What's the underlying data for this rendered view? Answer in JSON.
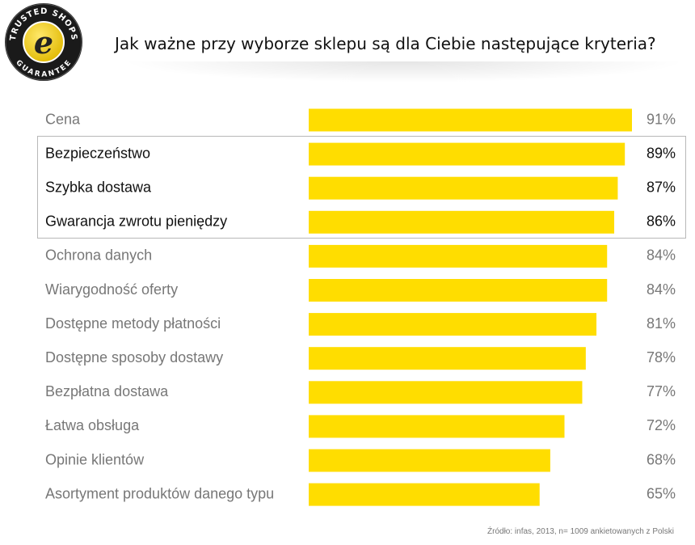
{
  "logo": {
    "text_top": "TRUSTED SHOPS",
    "text_bottom": "GUARANTEE",
    "letter": "e"
  },
  "title": "Jak ważne przy wyborze sklepu są dla Ciebie następujące kryteria?",
  "source": "Źródło: infas, 2013, n= 1009 ankietowanych z Polski",
  "colors": {
    "bar": "#FFDD00",
    "label_dim": "#777777",
    "label_highlight": "#111111"
  },
  "chart_data": {
    "type": "bar",
    "orientation": "horizontal",
    "title": "Jak ważne przy wyborze sklepu są dla Ciebie następujące kryteria?",
    "categories": [
      "Cena",
      "Bezpieczeństwo",
      "Szybka dostawa",
      "Gwarancja zwrotu pieniędzy",
      "Ochrona danych",
      "Wiarygodność oferty",
      "Dostępne metody płatności",
      "Dostępne sposoby dostawy",
      "Bezpłatna dostawa",
      "Łatwa obsługa",
      "Opinie klientów",
      "Asortyment produktów danego typu"
    ],
    "values": [
      91,
      89,
      87,
      86,
      84,
      84,
      81,
      78,
      77,
      72,
      68,
      65
    ],
    "value_labels": [
      "91%",
      "89%",
      "87%",
      "86%",
      "84%",
      "84%",
      "81%",
      "78%",
      "77%",
      "72%",
      "68%",
      "65%"
    ],
    "highlighted_categories": [
      "Bezpieczeństwo",
      "Szybka dostawa",
      "Gwarancja zwrotu pieniędzy"
    ],
    "xlim": [
      0,
      100
    ],
    "grid": false,
    "legend": "none"
  }
}
